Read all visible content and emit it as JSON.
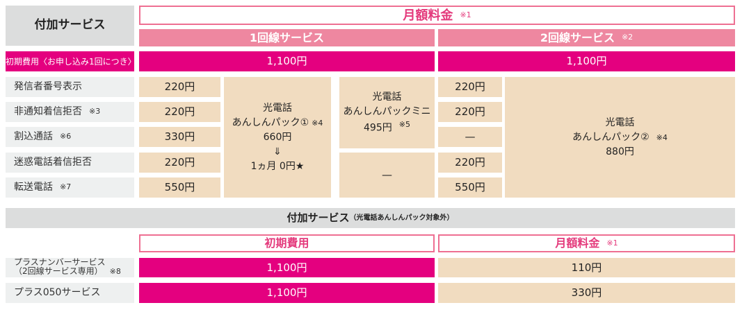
{
  "top": {
    "corner": "付加サービス",
    "monthly": "月額料金",
    "monthly_note": "※1",
    "line1": "1回線サービス",
    "line2": "2回線サービス",
    "line2_note": "※2",
    "initial_label": "初期費用〈お申し込み1回につき〉",
    "initial_line1": "1,100円",
    "initial_line2": "1,100円",
    "rows": [
      {
        "label": "発信者番号表示",
        "note": "",
        "line1": "220円",
        "line2": "220円"
      },
      {
        "label": "非通知着信拒否",
        "note": "※3",
        "line1": "220円",
        "line2": "220円"
      },
      {
        "label": "割込通話",
        "note": "※6",
        "line1": "330円",
        "line2": "—"
      },
      {
        "label": "迷惑電話着信拒否",
        "note": "",
        "line1": "220円",
        "line2": "220円"
      },
      {
        "label": "転送電話",
        "note": "※7",
        "line1": "550円",
        "line2": "550円"
      }
    ],
    "pack1": {
      "l1": "光電話",
      "l2": "あんしんパック①",
      "note": "※4",
      "price": "660円",
      "arrow": "⇓",
      "promo": "1ヵ月 0円★"
    },
    "mini": {
      "l1": "光電話",
      "l2": "あんしんパックミニ",
      "price": "495円",
      "note": "※5",
      "dash": "—"
    },
    "pack2": {
      "l1": "光電話",
      "l2": "あんしんパック②",
      "note": "※4",
      "price": "880円"
    }
  },
  "bottom": {
    "title": "付加サービス",
    "title_sub": "（光電話あんしんパック対象外）",
    "initial": "初期費用",
    "monthly": "月額料金",
    "monthly_note": "※1",
    "rows": [
      {
        "label": "プラスナンバーサービス",
        "label2": "（2回線サービス専用）",
        "note": "※8",
        "initial": "1,100円",
        "monthly": "110円"
      },
      {
        "label": "プラス050サービス",
        "initial": "1,100円",
        "monthly": "330円"
      }
    ]
  },
  "colors": {
    "magenta": "#e4007f",
    "pink": "#ee87a0",
    "beige": "#f1dcc0",
    "gray": "#dcdddd"
  }
}
